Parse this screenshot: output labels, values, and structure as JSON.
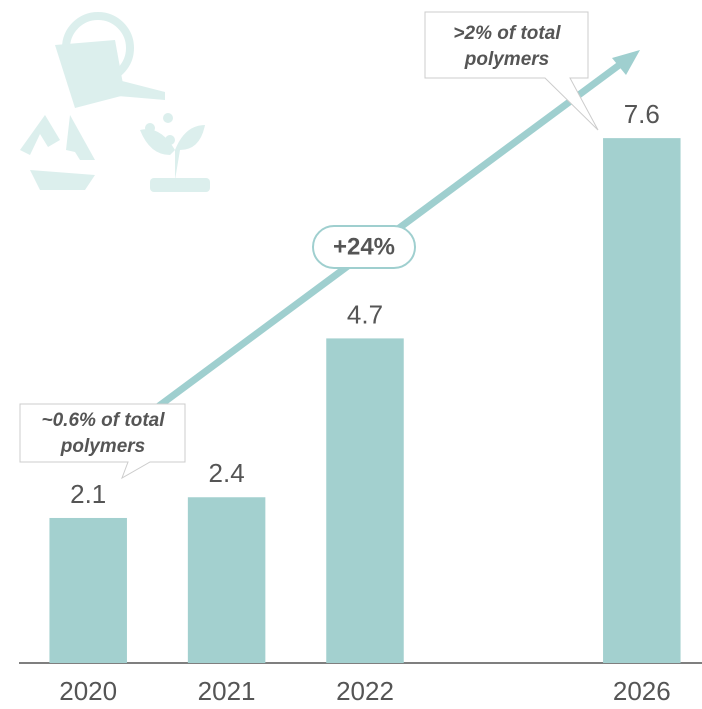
{
  "chart_data": {
    "type": "bar",
    "categories": [
      "2020",
      "2021",
      "2022",
      null,
      "2026"
    ],
    "values": [
      2.1,
      2.4,
      4.7,
      null,
      7.6
    ],
    "color": "#a3d0cf",
    "ylim": [
      0,
      9.6
    ],
    "growth_label": "+24%",
    "annotations": [
      {
        "lines": [
          "~0.6% of total",
          "polymers"
        ]
      },
      {
        "lines": [
          ">2% of total",
          "polymers"
        ]
      }
    ]
  }
}
